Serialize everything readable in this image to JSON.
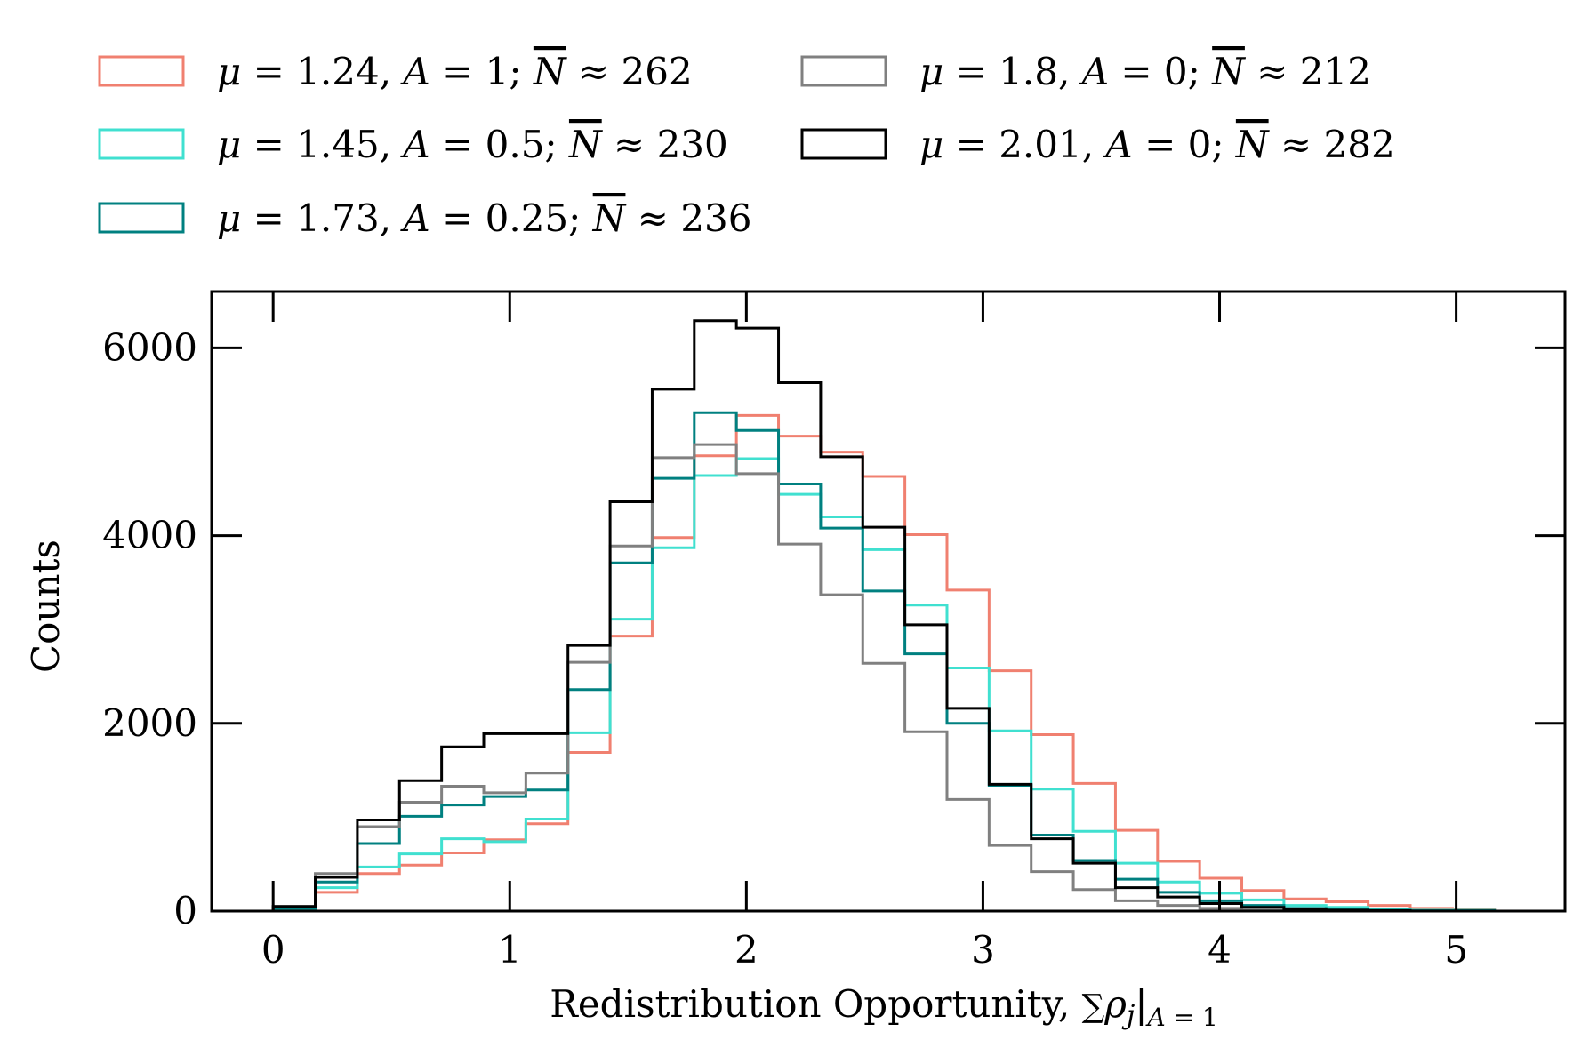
{
  "chart_data": {
    "type": "histogram",
    "title": "",
    "xlabel": "Redistribution Opportunity,",
    "xlabel_math": {
      "symbol": "∑",
      "var": "ρ",
      "sub": "j",
      "bar": "|",
      "cond_var": "A",
      "cond_op": " = ",
      "cond_val": "1"
    },
    "ylabel": "Counts",
    "xlim": [
      -0.26,
      5.46
    ],
    "ylim": [
      0,
      6600
    ],
    "xticks": [
      0,
      1,
      2,
      3,
      4,
      5
    ],
    "xtick_labels": [
      "0",
      "1",
      "2",
      "3",
      "4",
      "5"
    ],
    "yticks": [
      0,
      2000,
      4000,
      6000
    ],
    "ytick_labels": [
      "0",
      "2000",
      "4000",
      "6000"
    ],
    "legend_position": "top, outside plot, two columns",
    "bin_edges": [
      0,
      0.178,
      0.356,
      0.534,
      0.712,
      0.89,
      1.068,
      1.246,
      1.424,
      1.602,
      1.78,
      1.958,
      2.136,
      2.314,
      2.492,
      2.67,
      2.848,
      3.026,
      3.204,
      3.382,
      3.56,
      3.738,
      3.916,
      4.094,
      4.272,
      4.45,
      4.628,
      4.806,
      4.984,
      5.162
    ],
    "series": [
      {
        "name": "mu1.24",
        "color": "#f08070",
        "legend": {
          "mu": "1.24",
          "A": "1",
          "N": "262"
        },
        "values": [
          30,
          200,
          400,
          490,
          620,
          760,
          930,
          1690,
          2930,
          3980,
          4850,
          5280,
          5060,
          4890,
          4630,
          4010,
          3420,
          2560,
          1880,
          1360,
          860,
          530,
          350,
          220,
          130,
          100,
          60,
          30,
          20
        ]
      },
      {
        "name": "mu1.45",
        "color": "#40e0d0",
        "legend": {
          "mu": "1.45",
          "A": "0.5",
          "N": "230"
        },
        "values": [
          30,
          250,
          470,
          610,
          770,
          740,
          980,
          1900,
          3110,
          3870,
          4640,
          4820,
          4440,
          4200,
          3850,
          3260,
          2590,
          1920,
          1300,
          850,
          510,
          310,
          190,
          120,
          60,
          40,
          20,
          10,
          10
        ]
      },
      {
        "name": "mu1.73",
        "color": "#008080",
        "legend": {
          "mu": "1.73",
          "A": "0.25",
          "N": "236"
        },
        "values": [
          30,
          310,
          720,
          1010,
          1130,
          1220,
          1290,
          2360,
          3710,
          4610,
          5310,
          5120,
          4550,
          4080,
          3410,
          2740,
          2000,
          1340,
          810,
          540,
          340,
          200,
          110,
          60,
          30,
          20,
          10,
          5,
          5
        ]
      },
      {
        "name": "mu1.8",
        "color": "#808080",
        "legend": {
          "mu": "1.8",
          "A": "0",
          "N": "212"
        },
        "values": [
          50,
          400,
          900,
          1160,
          1330,
          1260,
          1470,
          2650,
          3890,
          4830,
          4970,
          4660,
          3910,
          3370,
          2640,
          1910,
          1190,
          700,
          420,
          230,
          110,
          60,
          30,
          10,
          5,
          5,
          0,
          0,
          0
        ]
      },
      {
        "name": "mu2.01",
        "color": "#000000",
        "legend": {
          "mu": "2.01",
          "A": "0",
          "N": "282"
        },
        "values": [
          50,
          360,
          970,
          1390,
          1750,
          1890,
          1890,
          2830,
          4360,
          5560,
          6290,
          6210,
          5630,
          4840,
          4090,
          3050,
          2160,
          1350,
          770,
          510,
          250,
          150,
          80,
          40,
          20,
          10,
          5,
          0,
          0
        ]
      }
    ]
  }
}
